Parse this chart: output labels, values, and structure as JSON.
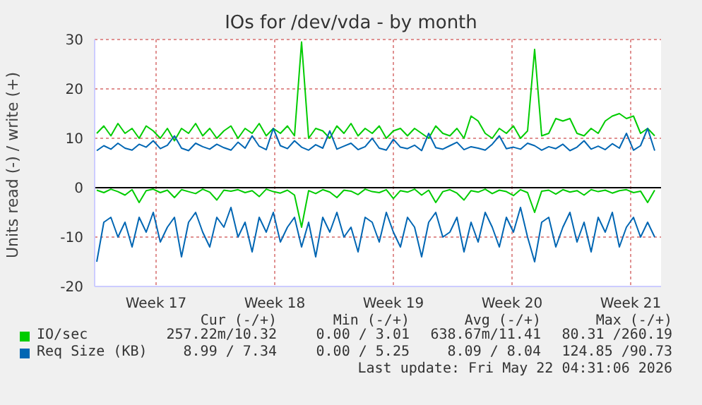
{
  "chart_data": {
    "type": "line",
    "title": "IOs for /dev/vda - by month",
    "ylabel": "Units read (-) / write (+)",
    "x": [
      "2026-04-19T12:00",
      "2026-04-19T22:00",
      "2026-04-20T08:00",
      "2026-04-20T18:00",
      "2026-04-21T04:00",
      "2026-04-21T14:00",
      "2026-04-22T00:00",
      "2026-04-22T10:00",
      "2026-04-22T20:00",
      "2026-04-23T06:00",
      "2026-04-23T16:00",
      "2026-04-24T02:00",
      "2026-04-24T12:00",
      "2026-04-24T22:00",
      "2026-04-25T08:00",
      "2026-04-25T18:00",
      "2026-04-26T04:00",
      "2026-04-26T14:00",
      "2026-04-27T00:00",
      "2026-04-27T10:00",
      "2026-04-27T20:00",
      "2026-04-28T06:00",
      "2026-04-28T16:00",
      "2026-04-29T02:00",
      "2026-04-29T12:00",
      "2026-04-29T22:00",
      "2026-04-30T08:00",
      "2026-04-30T18:00",
      "2026-05-01T04:00",
      "2026-05-01T14:00",
      "2026-05-02T00:00",
      "2026-05-02T10:00",
      "2026-05-02T20:00",
      "2026-05-03T06:00",
      "2026-05-03T16:00",
      "2026-05-04T02:00",
      "2026-05-04T12:00",
      "2026-05-04T22:00",
      "2026-05-05T08:00",
      "2026-05-05T18:00",
      "2026-05-06T04:00",
      "2026-05-06T14:00",
      "2026-05-07T00:00",
      "2026-05-07T10:00",
      "2026-05-07T20:00",
      "2026-05-08T06:00",
      "2026-05-08T16:00",
      "2026-05-09T02:00",
      "2026-05-09T12:00",
      "2026-05-09T22:00",
      "2026-05-10T08:00",
      "2026-05-10T18:00",
      "2026-05-11T04:00",
      "2026-05-11T14:00",
      "2026-05-12T00:00",
      "2026-05-12T10:00",
      "2026-05-12T20:00",
      "2026-05-13T06:00",
      "2026-05-13T16:00",
      "2026-05-14T02:00",
      "2026-05-14T12:00",
      "2026-05-14T22:00",
      "2026-05-15T08:00",
      "2026-05-15T18:00",
      "2026-05-16T04:00",
      "2026-05-16T14:00",
      "2026-05-17T00:00",
      "2026-05-17T10:00",
      "2026-05-17T20:00",
      "2026-05-18T06:00",
      "2026-05-18T16:00",
      "2026-05-19T02:00",
      "2026-05-19T12:00",
      "2026-05-19T22:00",
      "2026-05-20T08:00",
      "2026-05-20T18:00",
      "2026-05-21T04:00",
      "2026-05-21T14:00",
      "2026-05-22T00:00",
      "2026-05-22T10:00"
    ],
    "series": [
      {
        "name": "IO/sec",
        "color": "#00cc00",
        "values": [
          11,
          12.5,
          10.5,
          13,
          11,
          12,
          10,
          12.5,
          11.5,
          10,
          12,
          9.5,
          12,
          11,
          13,
          10.5,
          12,
          10,
          11.5,
          12.5,
          10,
          12,
          11,
          13,
          10.5,
          12,
          11,
          12.5,
          10.5,
          29.5,
          10,
          12,
          11.5,
          10,
          12.5,
          11,
          13,
          10.5,
          12,
          11,
          12.5,
          10,
          11.5,
          12,
          10.5,
          12,
          11,
          10,
          12.5,
          11,
          10.5,
          12,
          10,
          14.5,
          13.5,
          11,
          10,
          12,
          11,
          12.5,
          10,
          11.5,
          28,
          10.5,
          11,
          14,
          13.5,
          14,
          11,
          10.5,
          12,
          11,
          13.5,
          14.5,
          15,
          14,
          14.5,
          11,
          12,
          10.5
        ]
      },
      {
        "color": "#00cc00",
        "values": [
          -0.5,
          -1,
          -0.3,
          -0.8,
          -1.5,
          -0.4,
          -3,
          -0.6,
          -0.3,
          -1,
          -0.5,
          -2,
          -0.4,
          -0.8,
          -1.2,
          -0.3,
          -0.9,
          -2.5,
          -0.5,
          -0.7,
          -0.4,
          -1,
          -0.6,
          -1.8,
          -0.3,
          -0.8,
          -1.1,
          -0.5,
          -1.5,
          -8,
          -0.6,
          -1.2,
          -0.4,
          -0.9,
          -2,
          -0.5,
          -0.7,
          -1.4,
          -0.3,
          -0.8,
          -1,
          -0.4,
          -2.2,
          -0.6,
          -0.9,
          -0.3,
          -1.5,
          -0.5,
          -3,
          -0.8,
          -0.4,
          -1.1,
          -2.5,
          -0.6,
          -0.9,
          -0.3,
          -1.2,
          -0.5,
          -0.8,
          -1.6,
          -0.4,
          -1,
          -5,
          -0.7,
          -0.5,
          -1.3,
          -0.4,
          -0.9,
          -0.6,
          -1.5,
          -0.4,
          -0.8,
          -0.5,
          -1.1,
          -0.6,
          -0.4,
          -1,
          -0.7,
          -3,
          -0.5
        ]
      },
      {
        "name": "Req Size (KB)",
        "color": "#0066b3",
        "values": [
          7.5,
          8.5,
          7.8,
          9,
          8,
          7.6,
          8.8,
          8.2,
          9.5,
          7.9,
          8.6,
          10.5,
          8,
          7.5,
          9,
          8.3,
          7.8,
          8.8,
          8.1,
          7.6,
          9.2,
          8,
          10.5,
          8.4,
          7.7,
          12,
          8.5,
          7.9,
          9.5,
          8.2,
          7.6,
          8.7,
          8,
          11.5,
          7.8,
          8.4,
          9,
          7.7,
          8.3,
          10,
          8,
          7.6,
          9.8,
          8.2,
          7.9,
          8.6,
          7.5,
          11,
          8.1,
          7.8,
          8.5,
          9.2,
          7.7,
          8.3,
          8,
          7.6,
          8.8,
          10.5,
          7.9,
          8.2,
          7.8,
          9,
          8.5,
          7.6,
          8.3,
          7.9,
          8.8,
          7.5,
          8.2,
          9.5,
          7.8,
          8.4,
          7.7,
          8.9,
          8,
          11,
          7.6,
          8.5,
          12,
          7.5
        ]
      },
      {
        "color": "#0066b3",
        "values": [
          -15,
          -7,
          -6,
          -10,
          -7,
          -12,
          -6,
          -9,
          -5,
          -11,
          -8,
          -6,
          -14,
          -7,
          -5,
          -9,
          -12,
          -6,
          -8,
          -4,
          -10,
          -7,
          -13,
          -6,
          -9,
          -5,
          -11,
          -8,
          -6,
          -12,
          -7,
          -14,
          -6,
          -9,
          -5,
          -10,
          -8,
          -13,
          -6,
          -7,
          -11,
          -5,
          -9,
          -12,
          -6,
          -8,
          -14,
          -7,
          -5,
          -10,
          -9,
          -6,
          -13,
          -7,
          -11,
          -5,
          -8,
          -12,
          -6,
          -9,
          -4,
          -10,
          -15,
          -7,
          -6,
          -12,
          -8,
          -5,
          -11,
          -7,
          -13,
          -6,
          -9,
          -5,
          -12,
          -8,
          -6,
          -10,
          -7,
          -10
        ]
      }
    ],
    "xlim": [
      "2026-04-19T09:00",
      "2026-05-22T19:00"
    ],
    "xticks": [
      {
        "value": "2026-04-23",
        "label": "Week 17"
      },
      {
        "value": "2026-04-30",
        "label": "Week 18"
      },
      {
        "value": "2026-05-07",
        "label": "Week 19"
      },
      {
        "value": "2026-05-14",
        "label": "Week 20"
      },
      {
        "value": "2026-05-21",
        "label": "Week 21"
      }
    ],
    "ylim": [
      -20,
      30
    ],
    "yticks": [
      -20,
      -10,
      0,
      10,
      20,
      30
    ],
    "ref_lines": [
      {
        "axis": "y",
        "value": 0,
        "color": "#000000"
      }
    ],
    "grid": true,
    "legend": "bottom",
    "marker": "none",
    "line_style": "solid",
    "annotations": [
      "Cur (-/+)",
      "Min (-/+)",
      "Avg (-/+)",
      "Max (-/+)",
      "257.22m/10.32",
      "0.00 / 3.01",
      "638.67m/11.41",
      "80.31 /260.19",
      "8.99 / 7.34",
      "0.00 / 5.25",
      "8.09 / 8.04",
      "124.85 /90.73",
      "Last update: Fri May 22 04:31:06 2026"
    ]
  }
}
